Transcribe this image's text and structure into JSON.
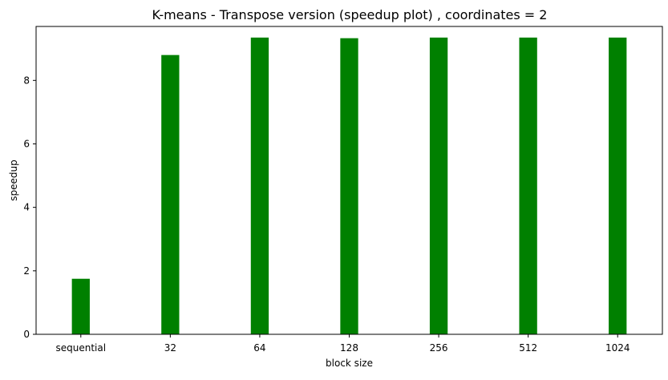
{
  "chart_data": {
    "type": "bar",
    "title": "K-means - Transpose version (speedup plot) , coordinates = 2",
    "xlabel": "block size",
    "ylabel": "speedup",
    "categories": [
      "sequential",
      "32",
      "64",
      "128",
      "256",
      "512",
      "1024"
    ],
    "values": [
      1.75,
      8.8,
      9.35,
      9.33,
      9.35,
      9.35,
      9.35
    ],
    "ylim": [
      0,
      9.7
    ],
    "yticks": [
      0,
      2,
      4,
      6,
      8
    ],
    "bar_color": "#008000",
    "grid": false,
    "legend": "none"
  }
}
